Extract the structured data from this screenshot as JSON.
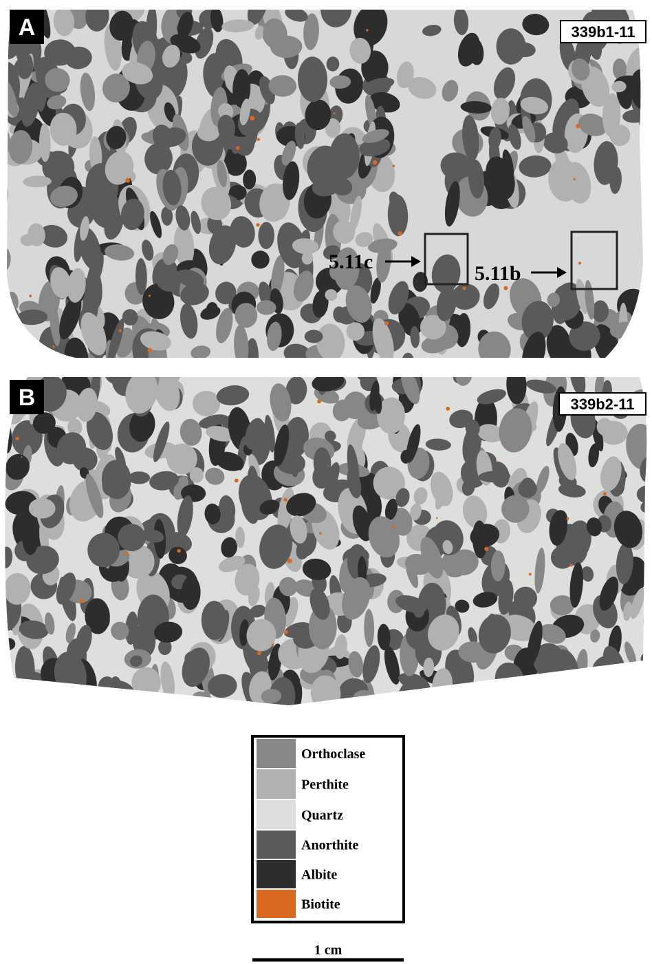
{
  "panels": [
    {
      "label": "A",
      "sample": "339b1-11",
      "annotations": [
        "5.11c",
        "5.11b"
      ]
    },
    {
      "label": "B",
      "sample": "339b2-11"
    }
  ],
  "legend": [
    {
      "label": "Orthoclase",
      "color": "#878787"
    },
    {
      "label": "Perthite",
      "color": "#b1b1b1"
    },
    {
      "label": "Quartz",
      "color": "#dcdfdc"
    },
    {
      "label": "Anorthite",
      "color": "#5a5a5a"
    },
    {
      "label": "Albite",
      "color": "#2d2d2d"
    },
    {
      "label": "Biotite",
      "color": "#d9691f"
    }
  ],
  "scale_bar": "1 cm"
}
